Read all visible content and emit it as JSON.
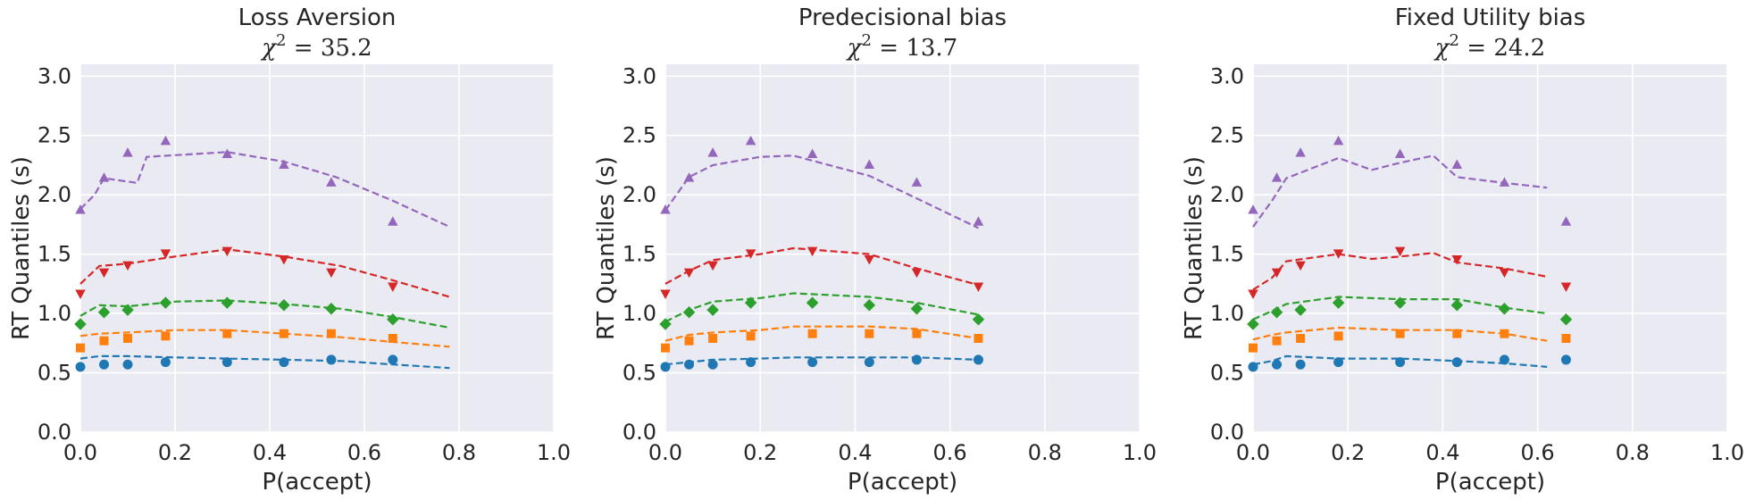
{
  "chart_data": [
    {
      "type": "scatter",
      "title": "Loss Aversion",
      "stat_symbol": "χ",
      "stat_power": "2",
      "stat_value": "35.2",
      "xlabel": "P(accept)",
      "ylabel": "RT Quantiles (s)",
      "xlim": [
        0.0,
        1.0
      ],
      "ylim": [
        0.0,
        3.1
      ],
      "xticks": [
        "0.0",
        "0.2",
        "0.4",
        "0.6",
        "0.8",
        "1.0"
      ],
      "yticks": [
        "0.0",
        "0.5",
        "1.0",
        "1.5",
        "2.0",
        "2.5",
        "3.0"
      ],
      "grid": true,
      "x": [
        0.0,
        0.05,
        0.1,
        0.18,
        0.31,
        0.43,
        0.53,
        0.66
      ],
      "series": [
        {
          "color": "#1f77b4",
          "marker": "circle",
          "values": [
            0.55,
            0.57,
            0.57,
            0.59,
            0.59,
            0.59,
            0.61,
            0.61
          ]
        },
        {
          "color": "#ff7f0e",
          "marker": "square",
          "values": [
            0.71,
            0.77,
            0.79,
            0.81,
            0.83,
            0.83,
            0.83,
            0.79
          ]
        },
        {
          "color": "#2ca02c",
          "marker": "diamond",
          "values": [
            0.91,
            1.01,
            1.03,
            1.09,
            1.09,
            1.07,
            1.04,
            0.95
          ]
        },
        {
          "color": "#d62728",
          "marker": "triangle-down",
          "values": [
            1.17,
            1.35,
            1.41,
            1.51,
            1.53,
            1.46,
            1.35,
            1.23
          ]
        },
        {
          "color": "#9467bd",
          "marker": "triangle-up",
          "values": [
            1.87,
            2.14,
            2.35,
            2.45,
            2.34,
            2.25,
            2.1,
            1.77
          ]
        }
      ],
      "model_lines": [
        {
          "color": "#1f77b4",
          "x": [
            0.0,
            0.04,
            0.1,
            0.2,
            0.31,
            0.43,
            0.55,
            0.66,
            0.78
          ],
          "y": [
            0.62,
            0.64,
            0.64,
            0.63,
            0.62,
            0.61,
            0.6,
            0.57,
            0.54
          ]
        },
        {
          "color": "#ff7f0e",
          "x": [
            0.0,
            0.04,
            0.1,
            0.2,
            0.31,
            0.43,
            0.55,
            0.66,
            0.78
          ],
          "y": [
            0.81,
            0.83,
            0.84,
            0.86,
            0.86,
            0.83,
            0.8,
            0.76,
            0.72
          ]
        },
        {
          "color": "#2ca02c",
          "x": [
            0.0,
            0.04,
            0.1,
            0.2,
            0.31,
            0.43,
            0.55,
            0.66,
            0.78
          ],
          "y": [
            0.98,
            1.07,
            1.06,
            1.1,
            1.11,
            1.08,
            1.04,
            0.97,
            0.88
          ]
        },
        {
          "color": "#d62728",
          "x": [
            0.0,
            0.04,
            0.1,
            0.2,
            0.31,
            0.43,
            0.55,
            0.66,
            0.78
          ],
          "y": [
            1.25,
            1.4,
            1.42,
            1.48,
            1.54,
            1.48,
            1.4,
            1.28,
            1.14
          ]
        },
        {
          "color": "#9467bd",
          "x": [
            0.0,
            0.03,
            0.05,
            0.12,
            0.14,
            0.31,
            0.43,
            0.54,
            0.66,
            0.78
          ],
          "y": [
            1.88,
            2.0,
            2.14,
            2.1,
            2.32,
            2.36,
            2.28,
            2.15,
            1.95,
            1.73
          ]
        }
      ]
    },
    {
      "type": "scatter",
      "title": "Predecisional bias",
      "stat_symbol": "χ",
      "stat_power": "2",
      "stat_value": "13.7",
      "xlabel": "P(accept)",
      "ylabel": "RT Quantiles (s)",
      "xlim": [
        0.0,
        1.0
      ],
      "ylim": [
        0.0,
        3.1
      ],
      "xticks": [
        "0.0",
        "0.2",
        "0.4",
        "0.6",
        "0.8",
        "1.0"
      ],
      "yticks": [
        "0.0",
        "0.5",
        "1.0",
        "1.5",
        "2.0",
        "2.5",
        "3.0"
      ],
      "grid": true,
      "x": [
        0.0,
        0.05,
        0.1,
        0.18,
        0.31,
        0.43,
        0.53,
        0.66
      ],
      "series": [
        {
          "color": "#1f77b4",
          "marker": "circle",
          "values": [
            0.55,
            0.57,
            0.57,
            0.59,
            0.59,
            0.59,
            0.61,
            0.61
          ]
        },
        {
          "color": "#ff7f0e",
          "marker": "square",
          "values": [
            0.71,
            0.77,
            0.79,
            0.81,
            0.83,
            0.83,
            0.83,
            0.79
          ]
        },
        {
          "color": "#2ca02c",
          "marker": "diamond",
          "values": [
            0.91,
            1.01,
            1.03,
            1.09,
            1.09,
            1.07,
            1.04,
            0.95
          ]
        },
        {
          "color": "#d62728",
          "marker": "triangle-down",
          "values": [
            1.17,
            1.35,
            1.41,
            1.51,
            1.53,
            1.46,
            1.35,
            1.23
          ]
        },
        {
          "color": "#9467bd",
          "marker": "triangle-up",
          "values": [
            1.87,
            2.14,
            2.35,
            2.45,
            2.34,
            2.25,
            2.1,
            1.77
          ]
        }
      ],
      "model_lines": [
        {
          "color": "#1f77b4",
          "x": [
            0.0,
            0.05,
            0.1,
            0.2,
            0.27,
            0.43,
            0.53,
            0.66
          ],
          "y": [
            0.57,
            0.59,
            0.61,
            0.62,
            0.63,
            0.63,
            0.63,
            0.61
          ]
        },
        {
          "color": "#ff7f0e",
          "x": [
            0.0,
            0.05,
            0.1,
            0.2,
            0.27,
            0.43,
            0.53,
            0.66
          ],
          "y": [
            0.77,
            0.82,
            0.84,
            0.86,
            0.89,
            0.89,
            0.87,
            0.79
          ]
        },
        {
          "color": "#2ca02c",
          "x": [
            0.0,
            0.05,
            0.1,
            0.2,
            0.27,
            0.43,
            0.53,
            0.66
          ],
          "y": [
            0.93,
            1.03,
            1.1,
            1.13,
            1.17,
            1.14,
            1.09,
            0.99
          ]
        },
        {
          "color": "#d62728",
          "x": [
            0.0,
            0.05,
            0.1,
            0.2,
            0.27,
            0.43,
            0.53,
            0.66
          ],
          "y": [
            1.25,
            1.36,
            1.45,
            1.5,
            1.55,
            1.5,
            1.38,
            1.24
          ]
        },
        {
          "color": "#9467bd",
          "x": [
            0.0,
            0.05,
            0.1,
            0.2,
            0.27,
            0.43,
            0.53,
            0.66
          ],
          "y": [
            1.87,
            2.15,
            2.25,
            2.32,
            2.33,
            2.16,
            1.97,
            1.72
          ]
        }
      ]
    },
    {
      "type": "scatter",
      "title": "Fixed Utility bias",
      "stat_symbol": "χ",
      "stat_power": "2",
      "stat_value": "24.2",
      "xlabel": "P(accept)",
      "ylabel": "RT Quantiles (s)",
      "xlim": [
        0.0,
        1.0
      ],
      "ylim": [
        0.0,
        3.1
      ],
      "xticks": [
        "0.0",
        "0.2",
        "0.4",
        "0.6",
        "0.8",
        "1.0"
      ],
      "yticks": [
        "0.0",
        "0.5",
        "1.0",
        "1.5",
        "2.0",
        "2.5",
        "3.0"
      ],
      "grid": true,
      "x": [
        0.0,
        0.05,
        0.1,
        0.18,
        0.31,
        0.43,
        0.53,
        0.66
      ],
      "series": [
        {
          "color": "#1f77b4",
          "marker": "circle",
          "values": [
            0.55,
            0.57,
            0.57,
            0.59,
            0.59,
            0.59,
            0.61,
            0.61
          ]
        },
        {
          "color": "#ff7f0e",
          "marker": "square",
          "values": [
            0.71,
            0.77,
            0.79,
            0.81,
            0.83,
            0.83,
            0.83,
            0.79
          ]
        },
        {
          "color": "#2ca02c",
          "marker": "diamond",
          "values": [
            0.91,
            1.01,
            1.03,
            1.09,
            1.09,
            1.07,
            1.04,
            0.95
          ]
        },
        {
          "color": "#d62728",
          "marker": "triangle-down",
          "values": [
            1.17,
            1.35,
            1.41,
            1.51,
            1.53,
            1.46,
            1.35,
            1.23
          ]
        },
        {
          "color": "#9467bd",
          "marker": "triangle-up",
          "values": [
            1.87,
            2.14,
            2.35,
            2.45,
            2.34,
            2.25,
            2.1,
            1.77
          ]
        }
      ],
      "model_lines": [
        {
          "color": "#1f77b4",
          "x": [
            0.0,
            0.04,
            0.07,
            0.18,
            0.31,
            0.43,
            0.53,
            0.62
          ],
          "y": [
            0.57,
            0.6,
            0.64,
            0.62,
            0.62,
            0.6,
            0.58,
            0.55
          ]
        },
        {
          "color": "#ff7f0e",
          "x": [
            0.0,
            0.04,
            0.07,
            0.18,
            0.31,
            0.43,
            0.53,
            0.62
          ],
          "y": [
            0.78,
            0.82,
            0.84,
            0.88,
            0.86,
            0.86,
            0.83,
            0.77
          ]
        },
        {
          "color": "#2ca02c",
          "x": [
            0.0,
            0.04,
            0.07,
            0.18,
            0.31,
            0.43,
            0.53,
            0.62
          ],
          "y": [
            0.95,
            1.02,
            1.08,
            1.14,
            1.12,
            1.12,
            1.05,
            1.0
          ]
        },
        {
          "color": "#d62728",
          "x": [
            0.0,
            0.04,
            0.07,
            0.18,
            0.25,
            0.31,
            0.38,
            0.43,
            0.53,
            0.62
          ],
          "y": [
            1.2,
            1.3,
            1.44,
            1.5,
            1.46,
            1.48,
            1.51,
            1.43,
            1.38,
            1.31
          ]
        },
        {
          "color": "#9467bd",
          "x": [
            0.0,
            0.04,
            0.07,
            0.18,
            0.25,
            0.31,
            0.38,
            0.43,
            0.53,
            0.62
          ],
          "y": [
            1.73,
            1.95,
            2.14,
            2.31,
            2.21,
            2.27,
            2.33,
            2.15,
            2.1,
            2.06
          ]
        }
      ]
    }
  ]
}
